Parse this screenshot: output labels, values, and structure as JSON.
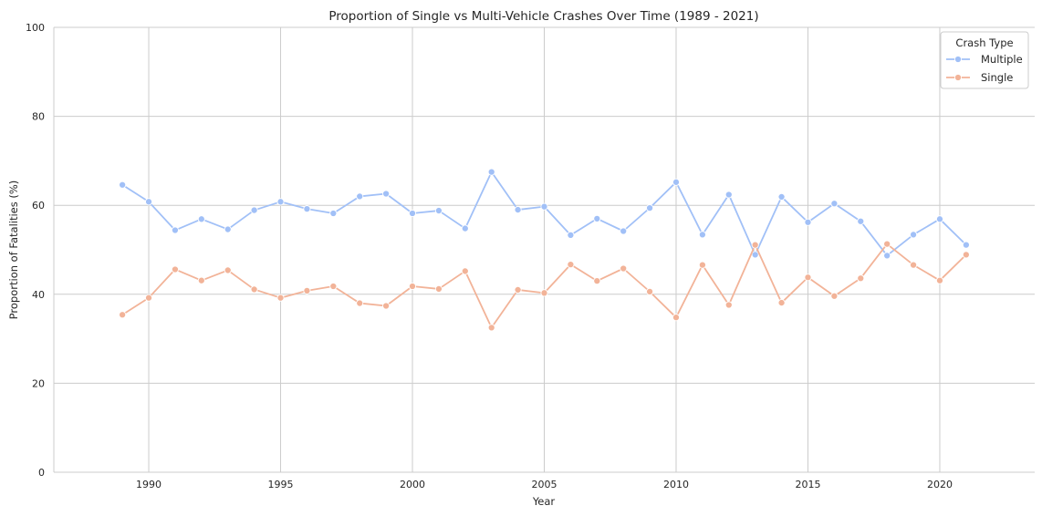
{
  "chart_data": {
    "type": "line",
    "title": "Proportion of Single vs Multi-Vehicle Crashes Over Time (1989 - 2021)",
    "xlabel": "Year",
    "ylabel": "Proportion of Fatalities (%)",
    "xlim": [
      1986.4,
      2023.6
    ],
    "ylim": [
      0,
      100
    ],
    "xticks": [
      1990,
      1995,
      2000,
      2005,
      2010,
      2015,
      2020
    ],
    "yticks": [
      0,
      20,
      40,
      60,
      80,
      100
    ],
    "grid": true,
    "legend": {
      "title": "Crash Type",
      "position": "top-right"
    },
    "x": [
      1989,
      1990,
      1991,
      1992,
      1993,
      1994,
      1995,
      1996,
      1997,
      1998,
      1999,
      2000,
      2001,
      2002,
      2003,
      2004,
      2005,
      2006,
      2007,
      2008,
      2009,
      2010,
      2011,
      2012,
      2013,
      2014,
      2015,
      2016,
      2017,
      2018,
      2019,
      2020,
      2021
    ],
    "series": [
      {
        "name": "Multiple",
        "color": "#a1c0f7",
        "values": [
          64.6,
          60.8,
          54.4,
          56.9,
          54.6,
          58.9,
          60.8,
          59.2,
          58.2,
          62.0,
          62.6,
          58.2,
          58.8,
          54.8,
          67.5,
          59.0,
          59.7,
          53.3,
          57.0,
          54.2,
          59.4,
          65.2,
          53.4,
          62.4,
          48.9,
          61.9,
          56.2,
          60.4,
          56.4,
          48.7,
          53.4,
          56.9,
          51.1
        ]
      },
      {
        "name": "Single",
        "color": "#f2b398",
        "values": [
          35.4,
          39.2,
          45.6,
          43.1,
          45.4,
          41.1,
          39.2,
          40.8,
          41.8,
          38.0,
          37.4,
          41.8,
          41.2,
          45.2,
          32.5,
          41.0,
          40.3,
          46.7,
          43.0,
          45.8,
          40.6,
          34.8,
          46.6,
          37.6,
          51.1,
          38.1,
          43.8,
          39.6,
          43.6,
          51.3,
          46.6,
          43.1,
          48.9
        ]
      }
    ]
  }
}
